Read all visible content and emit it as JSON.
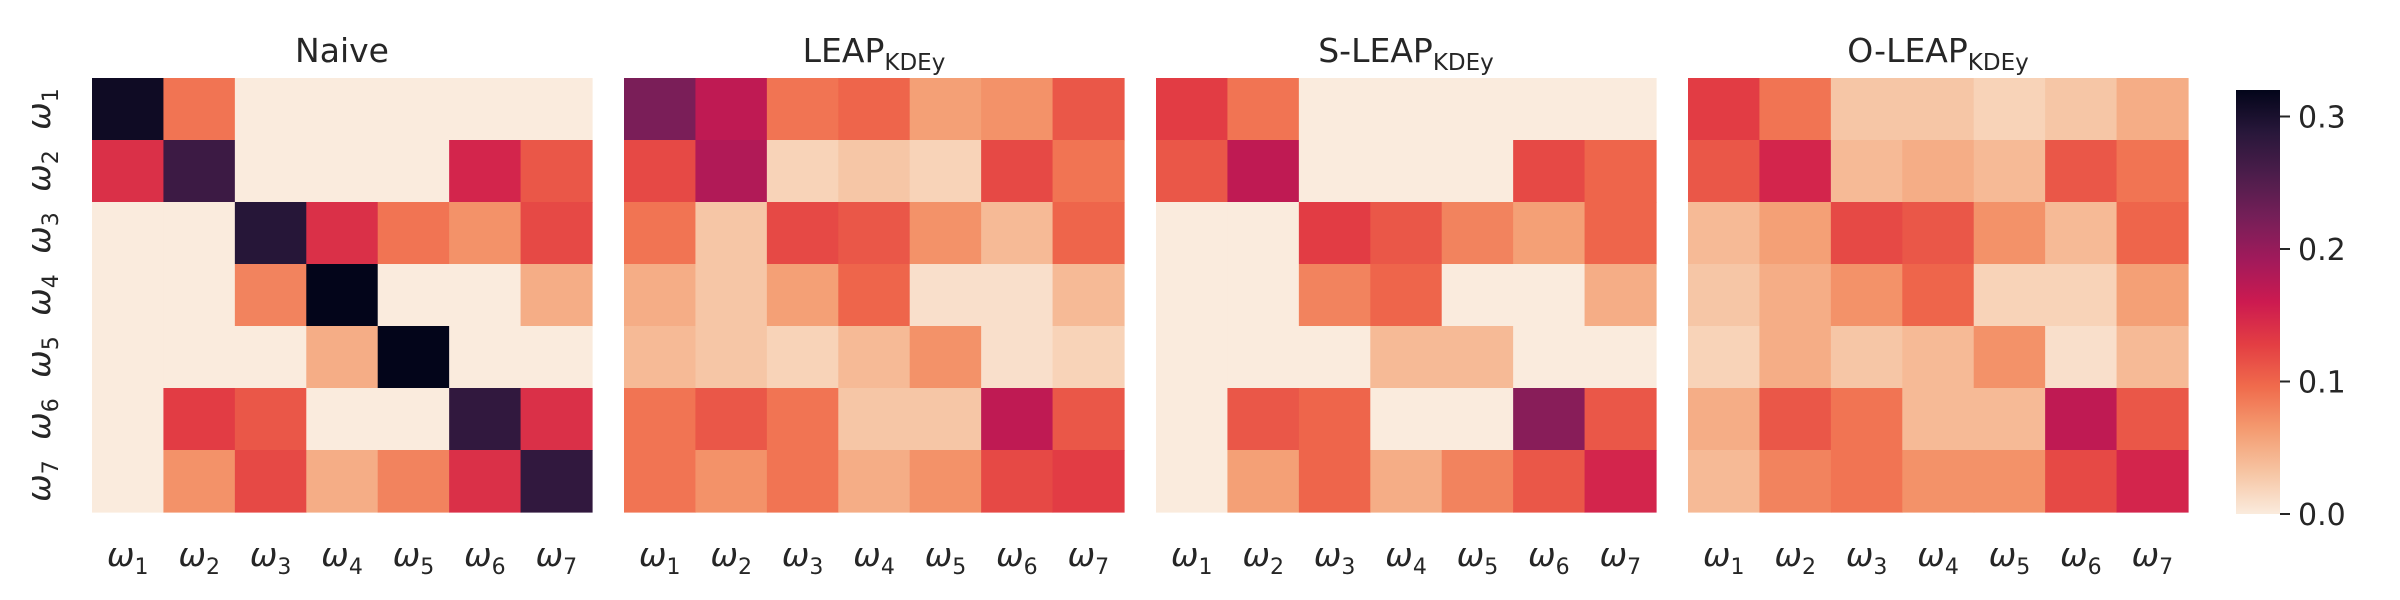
{
  "chart_data": [
    {
      "type": "heatmap",
      "title": "Naive",
      "title_sub": "",
      "x_categories": [
        {
          "base": "ω",
          "sub": "1"
        },
        {
          "base": "ω",
          "sub": "2"
        },
        {
          "base": "ω",
          "sub": "3"
        },
        {
          "base": "ω",
          "sub": "4"
        },
        {
          "base": "ω",
          "sub": "5"
        },
        {
          "base": "ω",
          "sub": "6"
        },
        {
          "base": "ω",
          "sub": "7"
        }
      ],
      "y_categories": [
        {
          "base": "ω",
          "sub": "1"
        },
        {
          "base": "ω",
          "sub": "2"
        },
        {
          "base": "ω",
          "sub": "3"
        },
        {
          "base": "ω",
          "sub": "4"
        },
        {
          "base": "ω",
          "sub": "5"
        },
        {
          "base": "ω",
          "sub": "6"
        },
        {
          "base": "ω",
          "sub": "7"
        }
      ],
      "values": [
        [
          0.31,
          0.09,
          0.0,
          0.0,
          0.0,
          0.0,
          0.0
        ],
        [
          0.14,
          0.27,
          0.0,
          0.0,
          0.0,
          0.15,
          0.11
        ],
        [
          0.0,
          0.0,
          0.29,
          0.14,
          0.09,
          0.07,
          0.12
        ],
        [
          0.0,
          0.0,
          0.08,
          0.32,
          0.0,
          0.0,
          0.05
        ],
        [
          0.0,
          0.0,
          0.0,
          0.05,
          0.32,
          0.0,
          0.0
        ],
        [
          0.0,
          0.13,
          0.11,
          0.0,
          0.0,
          0.28,
          0.14
        ],
        [
          0.0,
          0.07,
          0.12,
          0.05,
          0.08,
          0.14,
          0.28
        ]
      ]
    },
    {
      "type": "heatmap",
      "title": "LEAP",
      "title_sub": "KDEy",
      "x_categories": [
        {
          "base": "ω",
          "sub": "1"
        },
        {
          "base": "ω",
          "sub": "2"
        },
        {
          "base": "ω",
          "sub": "3"
        },
        {
          "base": "ω",
          "sub": "4"
        },
        {
          "base": "ω",
          "sub": "5"
        },
        {
          "base": "ω",
          "sub": "6"
        },
        {
          "base": "ω",
          "sub": "7"
        }
      ],
      "y_categories": [],
      "values": [
        [
          0.22,
          0.17,
          0.09,
          0.1,
          0.06,
          0.07,
          0.11
        ],
        [
          0.12,
          0.18,
          0.02,
          0.03,
          0.02,
          0.12,
          0.09
        ],
        [
          0.09,
          0.03,
          0.12,
          0.11,
          0.07,
          0.04,
          0.1
        ],
        [
          0.05,
          0.03,
          0.06,
          0.1,
          0.01,
          0.01,
          0.04
        ],
        [
          0.04,
          0.03,
          0.02,
          0.04,
          0.07,
          0.01,
          0.02
        ],
        [
          0.09,
          0.11,
          0.09,
          0.03,
          0.03,
          0.17,
          0.11
        ],
        [
          0.09,
          0.07,
          0.09,
          0.05,
          0.07,
          0.12,
          0.13
        ]
      ]
    },
    {
      "type": "heatmap",
      "title": "S-LEAP",
      "title_sub": "KDEy",
      "x_categories": [
        {
          "base": "ω",
          "sub": "1"
        },
        {
          "base": "ω",
          "sub": "2"
        },
        {
          "base": "ω",
          "sub": "3"
        },
        {
          "base": "ω",
          "sub": "4"
        },
        {
          "base": "ω",
          "sub": "5"
        },
        {
          "base": "ω",
          "sub": "6"
        },
        {
          "base": "ω",
          "sub": "7"
        }
      ],
      "y_categories": [],
      "values": [
        [
          0.13,
          0.09,
          0.0,
          0.0,
          0.0,
          0.0,
          0.0
        ],
        [
          0.11,
          0.17,
          0.0,
          0.0,
          0.0,
          0.12,
          0.1
        ],
        [
          0.0,
          0.0,
          0.13,
          0.11,
          0.08,
          0.06,
          0.1
        ],
        [
          0.0,
          0.0,
          0.08,
          0.1,
          0.0,
          0.0,
          0.05
        ],
        [
          0.0,
          0.0,
          0.0,
          0.04,
          0.04,
          0.0,
          0.0
        ],
        [
          0.0,
          0.11,
          0.1,
          0.0,
          0.0,
          0.21,
          0.11
        ],
        [
          0.0,
          0.06,
          0.1,
          0.05,
          0.08,
          0.11,
          0.15
        ]
      ]
    },
    {
      "type": "heatmap",
      "title": "O-LEAP",
      "title_sub": "KDEy",
      "x_categories": [
        {
          "base": "ω",
          "sub": "1"
        },
        {
          "base": "ω",
          "sub": "2"
        },
        {
          "base": "ω",
          "sub": "3"
        },
        {
          "base": "ω",
          "sub": "4"
        },
        {
          "base": "ω",
          "sub": "5"
        },
        {
          "base": "ω",
          "sub": "6"
        },
        {
          "base": "ω",
          "sub": "7"
        }
      ],
      "y_categories": [],
      "values": [
        [
          0.13,
          0.09,
          0.03,
          0.03,
          0.02,
          0.03,
          0.05
        ],
        [
          0.11,
          0.15,
          0.04,
          0.05,
          0.04,
          0.11,
          0.09
        ],
        [
          0.04,
          0.06,
          0.12,
          0.11,
          0.07,
          0.04,
          0.1
        ],
        [
          0.03,
          0.05,
          0.07,
          0.1,
          0.02,
          0.02,
          0.06
        ],
        [
          0.02,
          0.05,
          0.03,
          0.04,
          0.07,
          0.01,
          0.04
        ],
        [
          0.05,
          0.11,
          0.09,
          0.04,
          0.04,
          0.17,
          0.11
        ],
        [
          0.04,
          0.08,
          0.09,
          0.07,
          0.07,
          0.12,
          0.15
        ]
      ]
    }
  ],
  "colorbar": {
    "colormap": "rocket_r",
    "vmin": 0.0,
    "vmax": 0.32,
    "ticks": [
      0.0,
      0.1,
      0.2,
      0.3
    ],
    "tick_labels": [
      "0.0",
      "0.1",
      "0.2",
      "0.3"
    ]
  },
  "colormap_stops": [
    {
      "t": 0.0,
      "color": "#faebdd"
    },
    {
      "t": 0.1,
      "color": "#f6c4a2"
    },
    {
      "t": 0.2,
      "color": "#f49b70"
    },
    {
      "t": 0.3,
      "color": "#f06b4c"
    },
    {
      "t": 0.4,
      "color": "#e33e43"
    },
    {
      "t": 0.5,
      "color": "#cc1a50"
    },
    {
      "t": 0.6,
      "color": "#a11a5b"
    },
    {
      "t": 0.7,
      "color": "#751f58"
    },
    {
      "t": 0.8,
      "color": "#4c1d4b"
    },
    {
      "t": 0.9,
      "color": "#28173a"
    },
    {
      "t": 1.0,
      "color": "#03051a"
    }
  ]
}
